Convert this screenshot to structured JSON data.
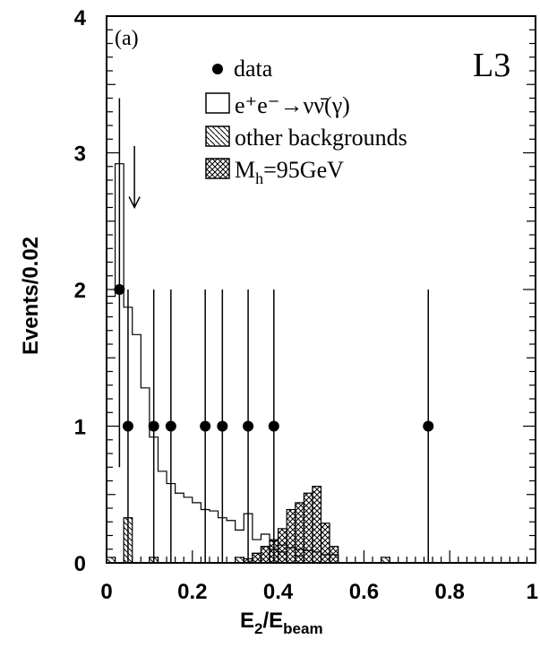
{
  "chart_data": {
    "type": "histogram",
    "panel_label": "(a)",
    "experiment_label": "L3",
    "xlabel": {
      "main": "E",
      "sub1": "2",
      "slash": "/E",
      "sub2": "beam"
    },
    "ylabel": "Events/0.02",
    "xlim": [
      0,
      1
    ],
    "ylim": [
      0,
      4
    ],
    "x_ticks": [
      "0",
      "0.2",
      "0.4",
      "0.6",
      "0.8",
      "1"
    ],
    "y_ticks": [
      "0",
      "1",
      "2",
      "3",
      "4"
    ],
    "bin_width": 0.02,
    "legend": {
      "data": "data",
      "nunu": "e⁺e⁻→νν̄(γ)",
      "other": "other backgrounds",
      "higgs_pre": "M",
      "higgs_sub": "h",
      "higgs_post": "=95GeV"
    },
    "cut_arrow_x": 0.065,
    "series": {
      "nunu_gamma": {
        "bin_edges": [
          0,
          0.02,
          0.04,
          0.06,
          0.08,
          0.1,
          0.12,
          0.14,
          0.16,
          0.18,
          0.2,
          0.22,
          0.24,
          0.26,
          0.28,
          0.3,
          0.32,
          0.34,
          0.36,
          0.38,
          0.4,
          0.42,
          0.44,
          0.46,
          0.48,
          0.5,
          0.52,
          0.54
        ],
        "values": [
          1.95,
          2.92,
          1.87,
          1.67,
          1.28,
          0.92,
          0.67,
          0.58,
          0.51,
          0.48,
          0.44,
          0.39,
          0.38,
          0.33,
          0.31,
          0.24,
          0.36,
          0.17,
          0.21,
          0.16,
          0.13,
          0.11,
          0.1,
          0.09,
          0.08,
          0.06,
          0.06
        ]
      },
      "other_backgrounds": [
        {
          "x0": 0.0,
          "x1": 0.02,
          "value": 0.04
        },
        {
          "x0": 0.04,
          "x1": 0.06,
          "value": 0.33
        },
        {
          "x0": 0.1,
          "x1": 0.12,
          "value": 0.04
        },
        {
          "x0": 0.3,
          "x1": 0.32,
          "value": 0.04
        },
        {
          "x0": 0.34,
          "x1": 0.36,
          "value": 0.07
        },
        {
          "x0": 0.36,
          "x1": 0.38,
          "value": 0.12
        },
        {
          "x0": 0.38,
          "x1": 0.4,
          "value": 0.1
        },
        {
          "x0": 0.4,
          "x1": 0.42,
          "value": 0.08
        },
        {
          "x0": 0.44,
          "x1": 0.46,
          "value": 0.05
        },
        {
          "x0": 0.64,
          "x1": 0.66,
          "value": 0.04
        }
      ],
      "higgs_95": [
        {
          "x0": 0.32,
          "x1": 0.34,
          "value": 0.03
        },
        {
          "x0": 0.34,
          "x1": 0.36,
          "value": 0.07
        },
        {
          "x0": 0.36,
          "x1": 0.38,
          "value": 0.12
        },
        {
          "x0": 0.38,
          "x1": 0.4,
          "value": 0.17
        },
        {
          "x0": 0.4,
          "x1": 0.42,
          "value": 0.25
        },
        {
          "x0": 0.42,
          "x1": 0.44,
          "value": 0.39
        },
        {
          "x0": 0.44,
          "x1": 0.46,
          "value": 0.44
        },
        {
          "x0": 0.46,
          "x1": 0.48,
          "value": 0.51
        },
        {
          "x0": 0.48,
          "x1": 0.5,
          "value": 0.56
        },
        {
          "x0": 0.5,
          "x1": 0.52,
          "value": 0.29
        },
        {
          "x0": 0.52,
          "x1": 0.54,
          "value": 0.12
        }
      ],
      "data": {
        "x": [
          0.03,
          0.05,
          0.11,
          0.15,
          0.23,
          0.27,
          0.33,
          0.39,
          0.75
        ],
        "y": [
          2,
          1,
          1,
          1,
          1,
          1,
          1,
          1,
          1
        ],
        "err_low": [
          1.3,
          1.0,
          1.0,
          1.0,
          1.0,
          1.0,
          1.0,
          1.0,
          1.0
        ],
        "err_high": [
          1.4,
          1.0,
          1.0,
          1.0,
          1.0,
          1.0,
          1.0,
          1.0,
          1.0
        ]
      }
    }
  }
}
